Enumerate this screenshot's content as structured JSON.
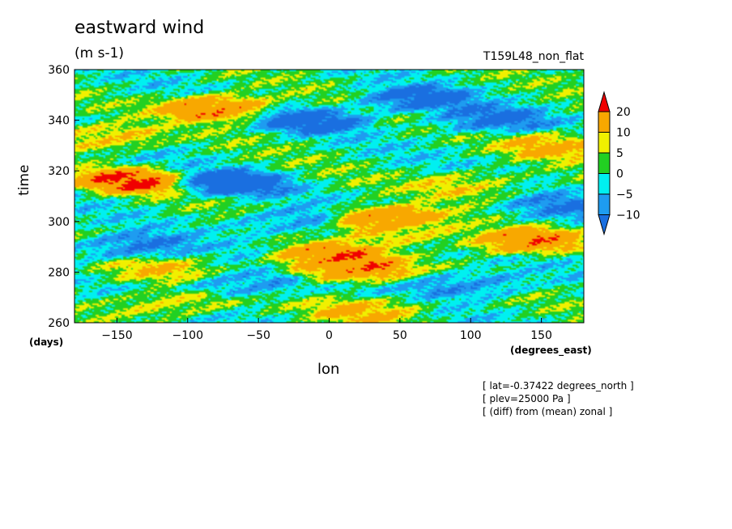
{
  "chart_data": {
    "type": "heatmap",
    "title": "eastward wind",
    "units": "(m s-1)",
    "run_label": "T159L48_non_flat",
    "xlabel": "lon",
    "xunit": "(degrees_east)",
    "ylabel": "time",
    "yunit": "(days)",
    "xlim": [
      -180,
      180
    ],
    "ylim": [
      260,
      360
    ],
    "xticks": [
      "-150",
      "-100",
      "-50",
      "0",
      "50",
      "100",
      "150"
    ],
    "xtick_values": [
      -150,
      -100,
      -50,
      0,
      50,
      100,
      150
    ],
    "yticks": [
      "260",
      "280",
      "300",
      "320",
      "340",
      "360"
    ],
    "ytick_values": [
      260,
      280,
      300,
      320,
      340,
      360
    ],
    "contour_levels": [
      -10,
      -5,
      0,
      5,
      10,
      20
    ],
    "colorbar_labels": [
      "20",
      "10",
      "5",
      "0",
      "-5",
      "-10"
    ],
    "colors": [
      "#1a6fe0",
      "#1e9cf0",
      "#00f0f0",
      "#22d022",
      "#f0f000",
      "#f8a800",
      "#f00000"
    ],
    "notes": [
      "[ lat=-0.37422 degrees_north ]",
      "[ plev=25000 Pa ]",
      "[ (diff) from (mean) zonal ]"
    ],
    "features": [
      {
        "lon": -80,
        "time": 345,
        "value": 22
      },
      {
        "lon": -140,
        "time": 316,
        "value": 21
      },
      {
        "lon": 40,
        "time": 301,
        "value": 23
      },
      {
        "lon": 15,
        "time": 281,
        "value": 21
      },
      {
        "lon": -2,
        "time": 286,
        "value": 20
      },
      {
        "lon": 135,
        "time": 292,
        "value": 20
      },
      {
        "lon": -160,
        "time": 333,
        "value": 14
      },
      {
        "lon": 165,
        "time": 330,
        "value": 13
      },
      {
        "lon": 60,
        "time": 296,
        "value": 12
      },
      {
        "lon": 30,
        "time": 265,
        "value": 12
      },
      {
        "lon": -110,
        "time": 268,
        "value": 11
      },
      {
        "lon": 100,
        "time": 315,
        "value": 10
      },
      {
        "lon": -130,
        "time": 280,
        "value": 9
      },
      {
        "lon": -70,
        "time": 315,
        "value": -16
      },
      {
        "lon": -10,
        "time": 340,
        "value": -14
      },
      {
        "lon": 60,
        "time": 348,
        "value": -15
      },
      {
        "lon": -140,
        "time": 290,
        "value": -13
      },
      {
        "lon": 110,
        "time": 340,
        "value": -13
      },
      {
        "lon": 100,
        "time": 275,
        "value": -12
      },
      {
        "lon": -60,
        "time": 275,
        "value": -11
      },
      {
        "lon": 160,
        "time": 305,
        "value": -10
      },
      {
        "lon": -30,
        "time": 300,
        "value": -10
      }
    ]
  }
}
